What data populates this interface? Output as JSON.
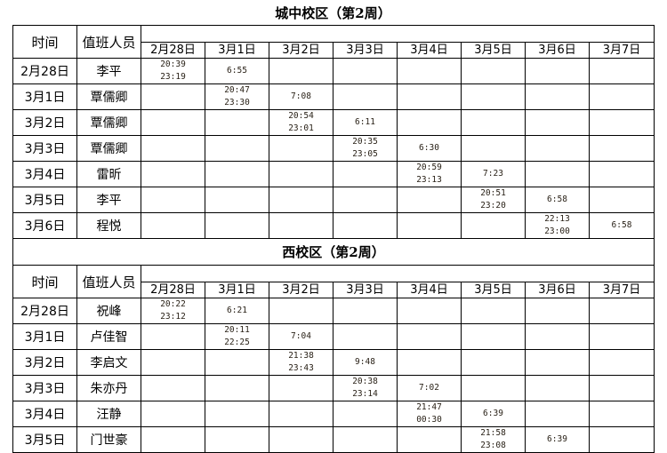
{
  "sections": [
    {
      "title": "城中校区（第2周）",
      "header_time": "时间",
      "header_person": "值班人员",
      "dates": [
        "2月28日",
        "3月1日",
        "3月2日",
        "3月3日",
        "3月4日",
        "3月5日",
        "3月6日",
        "3月7日"
      ],
      "rows": [
        {
          "date": "2月28日",
          "person": "李平",
          "cells": [
            [
              "20:39",
              "23:19"
            ],
            [
              "6:55"
            ],
            [],
            [],
            [],
            [],
            [],
            []
          ]
        },
        {
          "date": "3月1日",
          "person": "覃儒卿",
          "cells": [
            [],
            [
              "20:47",
              "23:30"
            ],
            [
              "7:08"
            ],
            [],
            [],
            [],
            [],
            []
          ]
        },
        {
          "date": "3月2日",
          "person": "覃儒卿",
          "cells": [
            [],
            [],
            [
              "20:54",
              "23:01"
            ],
            [
              "6:11"
            ],
            [],
            [],
            [],
            []
          ]
        },
        {
          "date": "3月3日",
          "person": "覃儒卿",
          "cells": [
            [],
            [],
            [],
            [
              "20:35",
              "23:05"
            ],
            [
              "6:30"
            ],
            [],
            [],
            []
          ]
        },
        {
          "date": "3月4日",
          "person": "雷昕",
          "cells": [
            [],
            [],
            [],
            [],
            [
              "20:59",
              "23:13"
            ],
            [
              "7:23"
            ],
            [],
            []
          ]
        },
        {
          "date": "3月5日",
          "person": "李平",
          "cells": [
            [],
            [],
            [],
            [],
            [],
            [
              "20:51",
              "23:20"
            ],
            [
              "6:58"
            ],
            []
          ]
        },
        {
          "date": "3月6日",
          "person": "程悦",
          "cells": [
            [],
            [],
            [],
            [],
            [],
            [],
            [
              "22:13",
              "23:00"
            ],
            [
              "6:58"
            ]
          ]
        }
      ]
    },
    {
      "title": "西校区（第2周）",
      "header_time": "时间",
      "header_person": "值班人员",
      "dates": [
        "2月28日",
        "3月1日",
        "3月2日",
        "3月3日",
        "3月4日",
        "3月5日",
        "3月6日",
        "3月7日"
      ],
      "rows": [
        {
          "date": "2月28日",
          "person": "祝峰",
          "cells": [
            [
              "20:22",
              "23:12"
            ],
            [
              "6:21"
            ],
            [],
            [],
            [],
            [],
            [],
            []
          ]
        },
        {
          "date": "3月1日",
          "person": "卢佳智",
          "cells": [
            [],
            [
              "20:11",
              "22:25"
            ],
            [
              "7:04"
            ],
            [],
            [],
            [],
            [],
            []
          ]
        },
        {
          "date": "3月2日",
          "person": "李启文",
          "cells": [
            [],
            [],
            [
              "21:38",
              "23:43"
            ],
            [
              "9:48"
            ],
            [],
            [],
            [],
            []
          ]
        },
        {
          "date": "3月3日",
          "person": "朱亦丹",
          "cells": [
            [],
            [],
            [],
            [
              "20:38",
              "23:14"
            ],
            [
              "7:02"
            ],
            [],
            [],
            []
          ]
        },
        {
          "date": "3月4日",
          "person": "汪静",
          "cells": [
            [],
            [],
            [],
            [],
            [
              "21:47",
              "00:30"
            ],
            [
              "6:39"
            ],
            [],
            []
          ]
        },
        {
          "date": "3月5日",
          "person": "门世豪",
          "cells": [
            [],
            [],
            [],
            [],
            [],
            [
              "21:58",
              "23:08"
            ],
            [
              "6:39"
            ],
            []
          ]
        }
      ]
    }
  ]
}
